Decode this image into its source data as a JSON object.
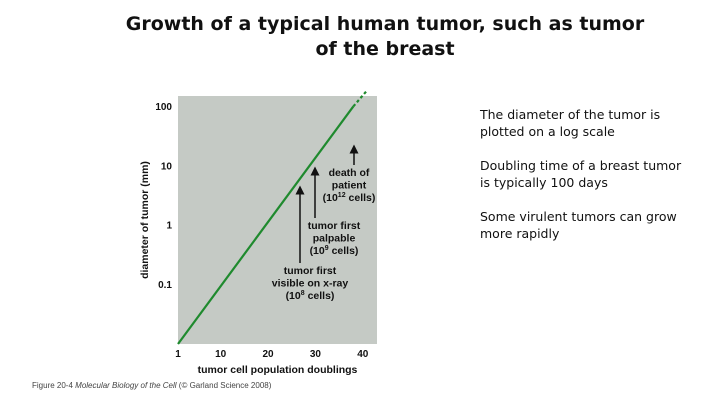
{
  "slide": {
    "title": "Growth of a typical human tumor, such as tumor of the breast",
    "notes": [
      "The diameter of the tumor is plotted on a log scale",
      "Doubling time of a breast tumor is typically 100 days",
      "Some virulent tumors can grow more rapidly"
    ],
    "caption_prefix": "Figure 20-4",
    "caption_book": "Molecular Biology of the Cell",
    "caption_suffix": "(© Garland Science 2008)"
  },
  "colors": {
    "plot_background": "#c5cac5",
    "line": "#1f8a2e"
  },
  "chart_data": {
    "type": "line",
    "title": "",
    "xlabel": "tumor cell population doublings",
    "ylabel": "diameter of tumor (mm)",
    "xlim": [
      1,
      43
    ],
    "ylim": [
      0.01,
      150
    ],
    "yscale": "log",
    "grid": false,
    "xticks": [
      1,
      10,
      20,
      30,
      40
    ],
    "xtick_labels": [
      "1",
      "10",
      "20",
      "30",
      "40"
    ],
    "yticks": [
      0.1,
      1,
      10,
      100
    ],
    "ytick_labels": [
      "0.1",
      "1",
      "10",
      "100"
    ],
    "series": [
      {
        "style": "solid",
        "x": [
          1,
          38
        ],
        "y": [
          0.01,
          100
        ]
      },
      {
        "style": "dashed",
        "x": [
          38,
          41
        ],
        "y": [
          100,
          190
        ]
      }
    ],
    "annotations": [
      {
        "lines": [
          "tumor first",
          "visible on x-ray"
        ],
        "base": "(10",
        "sup": "8",
        "tail": " cells)",
        "x": 27,
        "y": 1.1
      },
      {
        "lines": [
          "tumor first",
          "palpable"
        ],
        "base": "(10",
        "sup": "9",
        "tail": " cells)",
        "x": 30,
        "y": 11
      },
      {
        "lines": [
          "death of",
          "patient"
        ],
        "base": "(10",
        "sup": "12",
        "tail": " cells)",
        "x": 38,
        "y": 100
      }
    ]
  }
}
